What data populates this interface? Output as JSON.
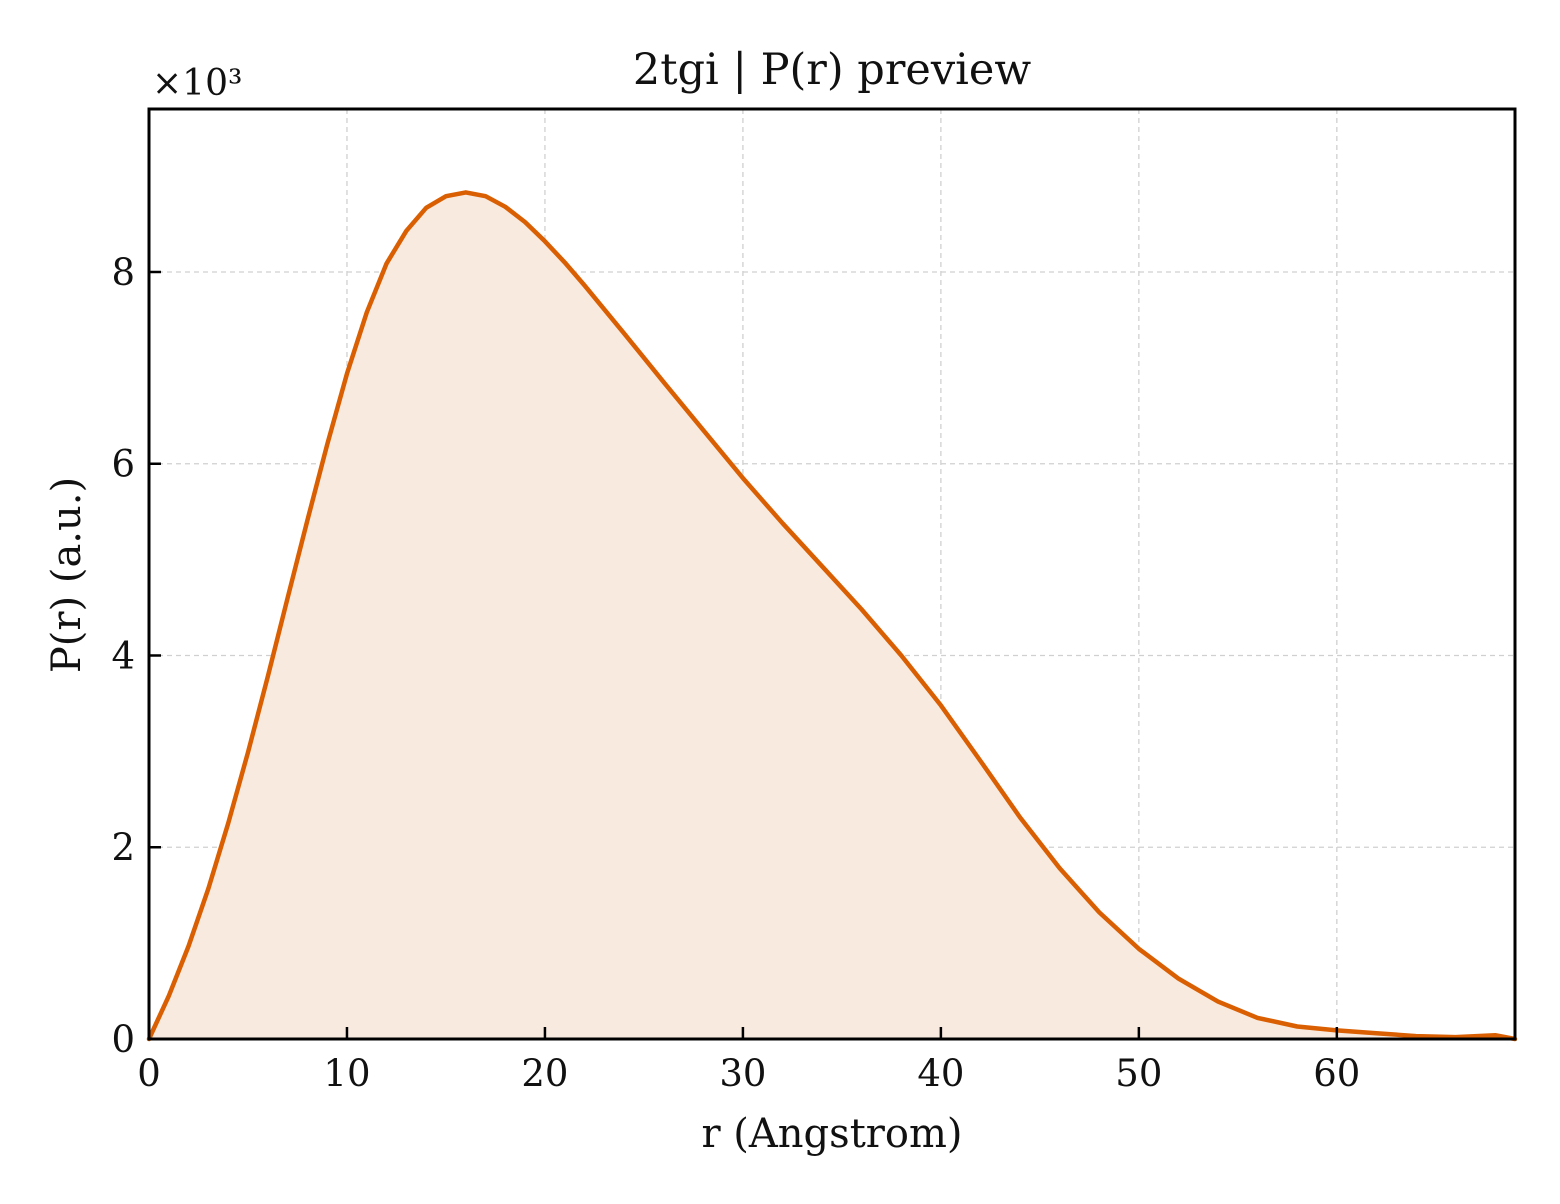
{
  "chart_data": {
    "type": "area",
    "title": "2tgi | P(r) preview",
    "xlabel": "r (Angstrom)",
    "ylabel": "P(r) (a.u.)",
    "y_multiplier_label": "×10³",
    "xlim": [
      0,
      69
    ],
    "ylim": [
      0,
      9.7
    ],
    "y_scale_note": "values in units of 10^3",
    "xticks": [
      0,
      10,
      20,
      30,
      40,
      50,
      60
    ],
    "yticks": [
      0,
      2,
      4,
      6,
      8
    ],
    "grid": true,
    "legend": "none",
    "line_color": "#d95f02",
    "fill_color": "#f9eadf",
    "series": [
      {
        "x": [
          0,
          1,
          2,
          3,
          4,
          5,
          6,
          7,
          8,
          9,
          10,
          11,
          12,
          13,
          14,
          15,
          16,
          17,
          18,
          19,
          20,
          21,
          22,
          24,
          26,
          28,
          30,
          32,
          34,
          36,
          38,
          40,
          42,
          44,
          46,
          48,
          50,
          52,
          54,
          56,
          58,
          60,
          62,
          64,
          66,
          68,
          69
        ],
        "y": [
          0,
          0.45,
          0.97,
          1.57,
          2.25,
          2.99,
          3.78,
          4.6,
          5.41,
          6.2,
          6.94,
          7.58,
          8.09,
          8.43,
          8.67,
          8.79,
          8.83,
          8.79,
          8.68,
          8.52,
          8.32,
          8.1,
          7.86,
          7.36,
          6.85,
          6.35,
          5.85,
          5.38,
          4.93,
          4.48,
          4.0,
          3.48,
          2.9,
          2.31,
          1.78,
          1.32,
          0.94,
          0.63,
          0.39,
          0.22,
          0.13,
          0.09,
          0.06,
          0.03,
          0.02,
          0.04,
          0.0
        ]
      }
    ]
  }
}
